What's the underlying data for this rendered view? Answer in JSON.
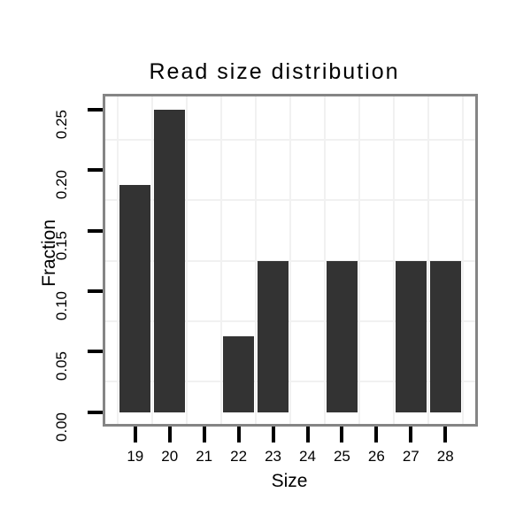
{
  "chart_data": {
    "type": "bar",
    "title": "Read size distribution",
    "xlabel": "Size",
    "ylabel": "Fraction",
    "categories": [
      19,
      20,
      21,
      22,
      23,
      24,
      25,
      26,
      27,
      28
    ],
    "values": [
      0.1875,
      0.25,
      0,
      0.0625,
      0.125,
      0,
      0.125,
      0,
      0.125,
      0.125
    ],
    "x_tick_labels": [
      "19",
      "20",
      "21",
      "22",
      "23",
      "24",
      "25",
      "26",
      "27",
      "28"
    ],
    "y_tick_labels": [
      "0.00",
      "0.05",
      "0.10",
      "0.15",
      "0.20",
      "0.25"
    ],
    "y_tick_values": [
      0,
      0.05,
      0.1,
      0.15,
      0.2,
      0.25
    ],
    "ylim": [
      0,
      0.2625
    ],
    "xlim": [
      18.08,
      28.92
    ],
    "grid": "minor gridlines only, at half-steps between ticks",
    "legend_position": "none",
    "colors": {
      "bar": "#333333",
      "panel_border": "#858585",
      "gridline": "#f1f1f1",
      "axis_tick": "#000000",
      "text": "#000000",
      "background": "#ffffff"
    }
  }
}
